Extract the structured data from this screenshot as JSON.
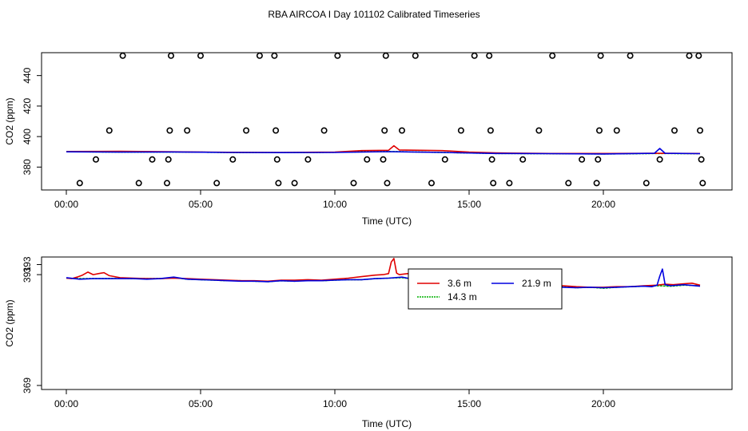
{
  "figure_title": "RBA AIRCOA I  Day 101102  Calibrated Timeseries",
  "legend": {
    "series": [
      {
        "name": "3.6 m",
        "color": "#e00000"
      },
      {
        "name": "14.3 m",
        "color": "#00b000"
      },
      {
        "name": "21.9 m",
        "color": "#0000e0"
      }
    ]
  },
  "chart_data": [
    {
      "type": "line",
      "title": "RBA AIRCOA I  Day 101102  Calibrated Timeseries",
      "xlabel": "Time (UTC)",
      "ylabel": "CO2 (ppm)",
      "xlim": [
        0,
        24
      ],
      "ylim": [
        365,
        455
      ],
      "xticks": [
        0,
        5,
        10,
        15,
        20
      ],
      "xtick_labels": [
        "00:00",
        "05:00",
        "10:00",
        "15:00",
        "20:00"
      ],
      "yticks": [
        380,
        400,
        420,
        440
      ],
      "ytick_labels": [
        "380",
        "400",
        "420",
        "440"
      ],
      "series": [
        {
          "name": "3.6 m",
          "color": "#e00000",
          "x": [
            0,
            2,
            4,
            6,
            8,
            10,
            11,
            12,
            12.2,
            12.4,
            14,
            15,
            16,
            18,
            20,
            22,
            23.6
          ],
          "y": [
            390.2,
            390.3,
            390.0,
            389.7,
            389.6,
            389.8,
            390.8,
            391.0,
            394.0,
            391.2,
            390.8,
            389.8,
            389.3,
            388.9,
            388.9,
            389.0,
            388.9
          ]
        },
        {
          "name": "14.3 m",
          "color": "#00b000",
          "x": [
            0,
            2,
            4,
            6,
            8,
            10,
            12,
            14,
            16,
            18,
            20,
            22,
            23.6
          ],
          "y": [
            390.1,
            389.8,
            389.9,
            389.6,
            389.5,
            389.7,
            390.2,
            389.6,
            388.9,
            388.8,
            388.6,
            388.9,
            388.8
          ]
        },
        {
          "name": "21.9 m",
          "color": "#0000e0",
          "x": [
            0,
            2,
            4,
            6,
            8,
            10,
            12,
            14,
            16,
            18,
            20,
            21.9,
            22.1,
            22.3,
            23.6
          ],
          "y": [
            390.0,
            389.8,
            389.9,
            389.6,
            389.5,
            389.6,
            390.1,
            389.6,
            388.9,
            388.8,
            388.6,
            389.0,
            392.2,
            389.0,
            388.8
          ]
        },
        {
          "name": "calibration points",
          "type": "scatter",
          "marker": "open-circle",
          "x": [
            0.5,
            1.1,
            1.6,
            2.1,
            2.7,
            3.2,
            3.75,
            3.8,
            3.85,
            3.9,
            4.5,
            5.0,
            5.6,
            6.2,
            6.7,
            7.2,
            7.75,
            7.8,
            7.85,
            7.9,
            8.5,
            9.0,
            9.6,
            10.1,
            10.7,
            11.2,
            11.8,
            11.85,
            11.9,
            11.95,
            12.5,
            13.0,
            13.6,
            14.1,
            14.7,
            15.2,
            15.75,
            15.8,
            15.85,
            15.9,
            16.5,
            17.0,
            17.6,
            18.1,
            18.7,
            19.2,
            19.75,
            19.8,
            19.85,
            19.9,
            20.5,
            21.0,
            21.6,
            22.1,
            22.65,
            23.2,
            23.55,
            23.6,
            23.65,
            23.7
          ],
          "y": [
            369.5,
            385.0,
            404.0,
            453.0,
            369.5,
            385.0,
            369.5,
            385.0,
            404.0,
            453.0,
            404.0,
            453.0,
            369.5,
            385.0,
            404.0,
            453.0,
            453.0,
            404.0,
            385.0,
            369.5,
            369.5,
            385.0,
            404.0,
            453.0,
            369.5,
            385.0,
            385.0,
            404.0,
            453.0,
            369.5,
            404.0,
            453.0,
            369.5,
            385.0,
            404.0,
            453.0,
            453.0,
            404.0,
            385.0,
            369.5,
            369.5,
            385.0,
            404.0,
            453.0,
            369.5,
            385.0,
            369.5,
            385.0,
            404.0,
            453.0,
            404.0,
            453.0,
            369.5,
            385.0,
            404.0,
            453.0,
            453.0,
            404.0,
            385.0,
            369.5
          ]
        }
      ]
    },
    {
      "type": "line",
      "xlabel": "Time (UTC)",
      "ylabel": "CO2 (ppm)",
      "xlim": [
        0,
        24
      ],
      "ylim": [
        368.2,
        394.5
      ],
      "xticks": [
        0,
        5,
        10,
        15,
        20
      ],
      "xtick_labels": [
        "00:00",
        "05:00",
        "10:00",
        "15:00",
        "20:00"
      ],
      "yticks": [
        369,
        391,
        393
      ],
      "ytick_labels": [
        "369",
        "391",
        "393"
      ],
      "legend_position": "top-center",
      "series": [
        {
          "name": "3.6 m",
          "color": "#e00000",
          "x": [
            0,
            0.2,
            0.4,
            0.6,
            0.8,
            1.0,
            1.2,
            1.4,
            1.6,
            1.8,
            2.0,
            2.5,
            3.0,
            3.5,
            4.0,
            4.5,
            5.0,
            5.5,
            6.0,
            6.5,
            7.0,
            7.5,
            8.0,
            8.5,
            9.0,
            9.5,
            10.0,
            10.5,
            11.0,
            11.5,
            11.8,
            12.0,
            12.1,
            12.2,
            12.3,
            12.4,
            12.7,
            13.0,
            13.5,
            14.0,
            14.5,
            15.0,
            15.3,
            15.6,
            16.0,
            16.5,
            17.0,
            17.5,
            18.0,
            18.5,
            19.0,
            19.5,
            20.0,
            20.5,
            21.0,
            21.5,
            22.0,
            22.3,
            22.6,
            23.0,
            23.3,
            23.6
          ],
          "y": [
            390.3,
            390.2,
            390.5,
            390.9,
            391.5,
            391.0,
            391.2,
            391.4,
            390.8,
            390.6,
            390.4,
            390.3,
            390.2,
            390.2,
            390.3,
            390.2,
            390.1,
            390.0,
            389.9,
            389.8,
            389.8,
            389.7,
            389.9,
            389.9,
            390.0,
            389.9,
            390.1,
            390.3,
            390.6,
            390.9,
            391.0,
            391.2,
            393.5,
            394.2,
            391.3,
            391.0,
            391.2,
            391.1,
            390.8,
            390.5,
            390.2,
            389.8,
            389.8,
            389.4,
            389.0,
            388.8,
            388.7,
            388.8,
            388.7,
            388.8,
            388.6,
            388.5,
            388.5,
            388.6,
            388.6,
            388.8,
            388.9,
            389.1,
            389.0,
            389.2,
            389.3,
            388.9
          ]
        },
        {
          "name": "14.3 m",
          "color": "#00b000",
          "x": [
            0,
            0.5,
            1.0,
            1.5,
            2.0,
            2.5,
            3.0,
            3.5,
            4.0,
            4.5,
            5.0,
            5.5,
            6.0,
            6.5,
            7.0,
            7.5,
            8.0,
            8.5,
            9.0,
            9.5,
            10.0,
            10.5,
            11.0,
            11.5,
            12.0,
            12.5,
            13.0,
            13.5,
            14.0,
            14.5,
            15.0,
            15.5,
            16.0,
            16.5,
            17.0,
            17.5,
            18.0,
            18.5,
            19.0,
            19.5,
            20.0,
            20.5,
            21.0,
            21.5,
            22.0,
            22.5,
            23.0,
            23.6
          ],
          "y": [
            390.3,
            390.2,
            390.2,
            390.2,
            390.3,
            390.2,
            390.2,
            390.2,
            390.4,
            390.1,
            390.0,
            389.9,
            389.8,
            389.8,
            389.7,
            389.6,
            389.8,
            389.7,
            389.9,
            389.8,
            389.9,
            390.0,
            390.0,
            390.2,
            390.3,
            390.4,
            390.1,
            390.0,
            389.9,
            389.6,
            389.4,
            389.0,
            388.9,
            388.6,
            388.7,
            388.6,
            388.5,
            388.6,
            388.4,
            388.5,
            388.3,
            388.5,
            388.6,
            388.7,
            388.8,
            388.7,
            388.9,
            388.8
          ]
        },
        {
          "name": "21.9 m",
          "color": "#0000e0",
          "x": [
            0,
            0.5,
            1.0,
            1.5,
            2.0,
            2.5,
            3.0,
            3.5,
            4.0,
            4.5,
            5.0,
            5.5,
            6.0,
            6.5,
            7.0,
            7.5,
            8.0,
            8.5,
            9.0,
            9.5,
            10.0,
            10.5,
            11.0,
            11.5,
            12.0,
            12.5,
            13.0,
            13.5,
            14.0,
            14.5,
            14.8,
            15.0,
            15.3,
            15.6,
            16.0,
            16.5,
            17.0,
            17.5,
            18.0,
            18.5,
            19.0,
            19.5,
            20.0,
            20.5,
            21.0,
            21.5,
            21.8,
            22.0,
            22.1,
            22.2,
            22.3,
            22.5,
            23.0,
            23.6
          ],
          "y": [
            390.4,
            390.1,
            390.2,
            390.2,
            390.2,
            390.2,
            390.1,
            390.2,
            390.5,
            390.1,
            390.0,
            389.9,
            389.8,
            389.7,
            389.7,
            389.6,
            389.8,
            389.7,
            389.8,
            389.8,
            389.9,
            390.0,
            390.0,
            390.2,
            390.3,
            390.5,
            390.0,
            390.0,
            389.8,
            389.5,
            389.1,
            389.2,
            388.8,
            389.0,
            388.7,
            388.5,
            388.7,
            388.6,
            388.6,
            388.5,
            388.4,
            388.5,
            388.4,
            388.5,
            388.6,
            388.7,
            388.6,
            388.9,
            390.7,
            392.1,
            389.0,
            388.8,
            389.0,
            388.7
          ]
        }
      ]
    }
  ]
}
